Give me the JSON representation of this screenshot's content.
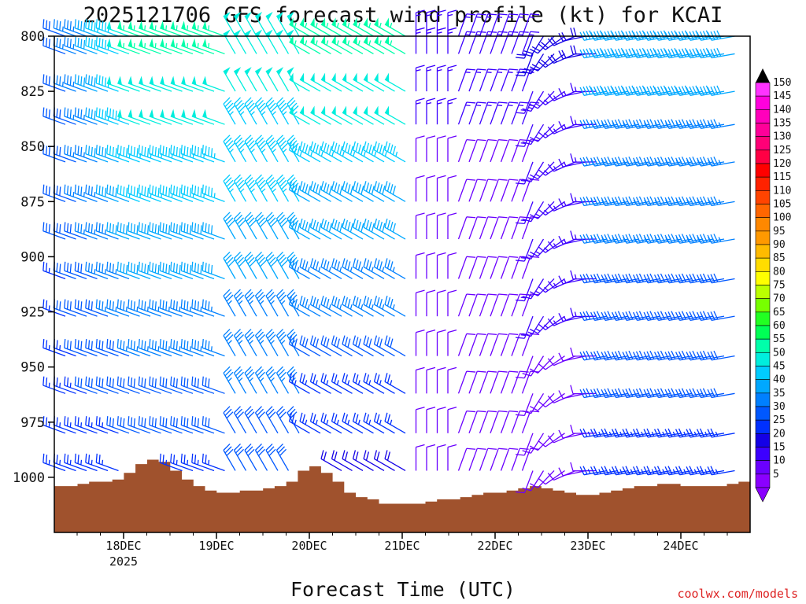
{
  "chart_data": {
    "type": "wind_barb_profile",
    "title": "2025121706 GFS forecast wind profile (kt) for KCAI",
    "xlabel": "Forecast Time (UTC)",
    "credit": "coolwx.com/models",
    "y_axis": {
      "reversed": true,
      "range": [
        800,
        1025
      ],
      "ticks": [
        "800",
        "825",
        "850",
        "875",
        "900",
        "925",
        "950",
        "975",
        "1000"
      ]
    },
    "x_axis": {
      "range_days": [
        "2025-12-17",
        "2025-12-24"
      ],
      "ticks": [
        {
          "label": "18DEC",
          "sub": "2025"
        },
        {
          "label": "19DEC",
          "sub": ""
        },
        {
          "label": "20DEC",
          "sub": ""
        },
        {
          "label": "21DEC",
          "sub": ""
        },
        {
          "label": "22DEC",
          "sub": ""
        },
        {
          "label": "23DEC",
          "sub": ""
        },
        {
          "label": "24DEC",
          "sub": ""
        }
      ]
    },
    "colorbar": {
      "levels": [
        "5",
        "10",
        "15",
        "20",
        "25",
        "30",
        "35",
        "40",
        "45",
        "50",
        "55",
        "60",
        "65",
        "70",
        "75",
        "80",
        "85",
        "90",
        "95",
        "100",
        "105",
        "110",
        "115",
        "120",
        "125",
        "130",
        "135",
        "140",
        "145",
        "150"
      ],
      "colors": [
        "#8a00ff",
        "#6a00ff",
        "#3c00ff",
        "#1400e6",
        "#0030ff",
        "#0058ff",
        "#0080ff",
        "#00a8ff",
        "#00ccff",
        "#00eedd",
        "#00ffaa",
        "#00ff55",
        "#22ff22",
        "#77ff00",
        "#bbff00",
        "#ffff00",
        "#ffdd00",
        "#ffbb00",
        "#ff9900",
        "#ff8800",
        "#ff6600",
        "#ff4400",
        "#ff2200",
        "#ff0000",
        "#ff0044",
        "#ff0077",
        "#ff0099",
        "#ff00bb",
        "#ff00dd",
        "#ff33ff"
      ]
    },
    "terrain": {
      "color": "#a0522d",
      "description_values_hpa": [
        1004,
        1004,
        1003,
        1002,
        1002,
        1001,
        998,
        994,
        992,
        993,
        997,
        1001,
        1004,
        1006,
        1007,
        1007,
        1006,
        1006,
        1005,
        1004,
        1002,
        997,
        995,
        998,
        1002,
        1007,
        1009,
        1010,
        1012,
        1012,
        1012,
        1012,
        1011,
        1010,
        1010,
        1009,
        1008,
        1007,
        1007,
        1006,
        1005,
        1004,
        1005,
        1006,
        1007,
        1008,
        1008,
        1007,
        1006,
        1005,
        1004,
        1004,
        1003,
        1003,
        1004,
        1004,
        1004,
        1004,
        1003,
        1002
      ]
    },
    "wind_levels_hpa": [
      800,
      808,
      825,
      840,
      857,
      875,
      892,
      910,
      927,
      945,
      962,
      980,
      997
    ],
    "wind_summary": "Wind barbs per forecast time and level; speeds 5-60 kt, mostly westerly to northwesterly, strongest (50-60 kt) near 18-19 Dec and 20-21 Dec aloft, lighter (5-15 kt) near 21-22 Dec."
  }
}
